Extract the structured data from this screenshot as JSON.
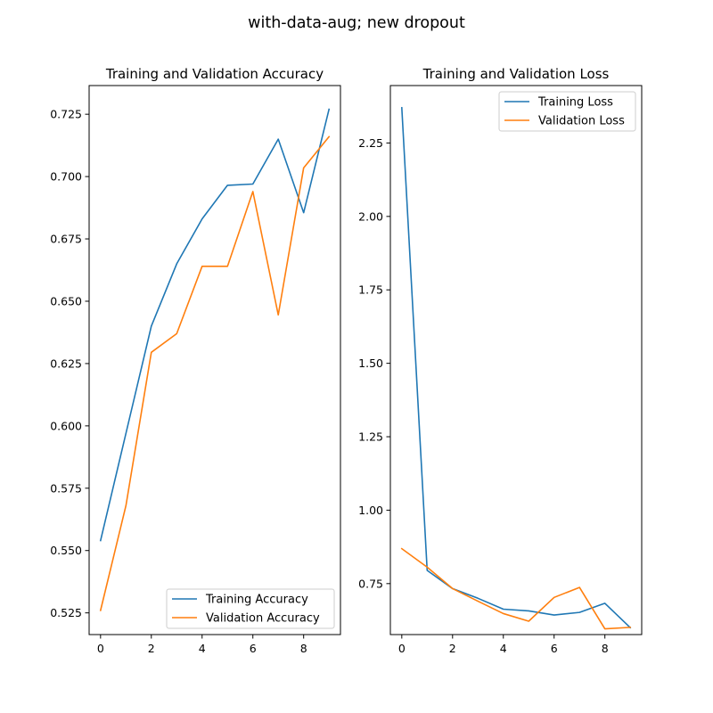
{
  "figure": {
    "suptitle": "with-data-aug; new dropout"
  },
  "colors": {
    "blue": "#1f77b4",
    "orange": "#ff7f0e"
  },
  "chart_data": [
    {
      "type": "line",
      "title": "Training and Validation Accuracy",
      "xlabel": "",
      "ylabel": "",
      "x": [
        0,
        1,
        2,
        3,
        4,
        5,
        6,
        7,
        8,
        9
      ],
      "xlim": [
        -0.45,
        9.45
      ],
      "ylim": [
        0.5163,
        0.7365
      ],
      "xticks": [
        0,
        2,
        4,
        6,
        8
      ],
      "yticks": [
        0.525,
        0.55,
        0.575,
        0.6,
        0.625,
        0.65,
        0.675,
        0.7,
        0.725
      ],
      "ytick_labels": [
        "0.525",
        "0.550",
        "0.575",
        "0.600",
        "0.625",
        "0.650",
        "0.675",
        "0.700",
        "0.725"
      ],
      "grid": false,
      "legend_position": "lower-right",
      "series": [
        {
          "name": "Training Accuracy",
          "color": "#1f77b4",
          "values": [
            0.554,
            0.597,
            0.64,
            0.665,
            0.683,
            0.6965,
            0.697,
            0.715,
            0.6855,
            0.727
          ]
        },
        {
          "name": "Validation Accuracy",
          "color": "#ff7f0e",
          "values": [
            0.526,
            0.568,
            0.6295,
            0.637,
            0.664,
            0.664,
            0.694,
            0.6445,
            0.7035,
            0.716
          ]
        }
      ]
    },
    {
      "type": "line",
      "title": "Training and Validation Loss",
      "xlabel": "",
      "ylabel": "",
      "x": [
        0,
        1,
        2,
        3,
        4,
        5,
        6,
        7,
        8,
        9
      ],
      "xlim": [
        -0.45,
        9.45
      ],
      "ylim": [
        0.5765,
        2.4455
      ],
      "xticks": [
        0,
        2,
        4,
        6,
        8
      ],
      "yticks": [
        0.75,
        1.0,
        1.25,
        1.5,
        1.75,
        2.0,
        2.25
      ],
      "ytick_labels": [
        "0.75",
        "1.00",
        "1.25",
        "1.50",
        "1.75",
        "2.00",
        "2.25"
      ],
      "grid": false,
      "legend_position": "upper-right",
      "series": [
        {
          "name": "Training Loss",
          "color": "#1f77b4",
          "values": [
            2.37,
            0.795,
            0.733,
            0.7,
            0.663,
            0.657,
            0.643,
            0.652,
            0.683,
            0.6
          ]
        },
        {
          "name": "Validation Loss",
          "color": "#ff7f0e",
          "values": [
            0.869,
            0.806,
            0.733,
            0.69,
            0.648,
            0.622,
            0.703,
            0.737,
            0.596,
            0.601
          ]
        }
      ]
    }
  ]
}
